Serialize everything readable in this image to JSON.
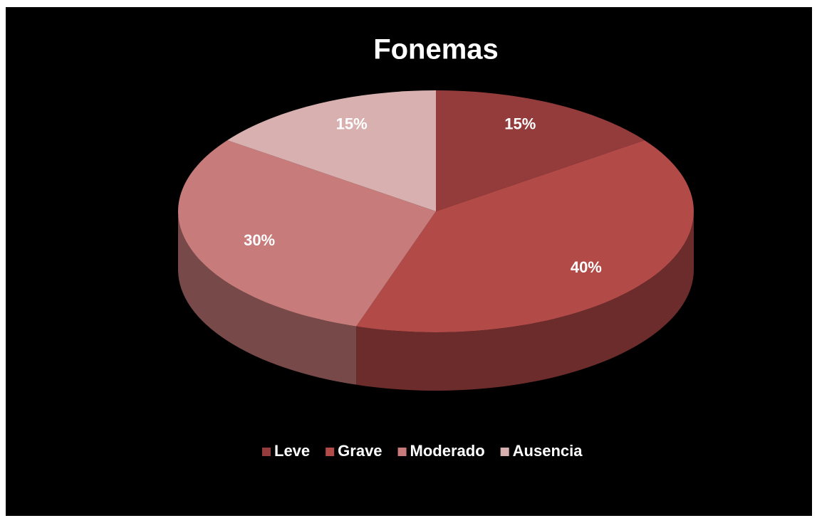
{
  "chart_data": {
    "type": "pie",
    "title": "Fonemas",
    "categories": [
      "Leve",
      "Grave",
      "Moderado",
      "Ausencia"
    ],
    "values": [
      15,
      40,
      30,
      15
    ],
    "value_labels": [
      "15%",
      "40%",
      "30%",
      "15%"
    ],
    "colors": [
      "#943c3c",
      "#b24a48",
      "#c77b7a",
      "#d9b0b0"
    ],
    "legend": "bottom"
  }
}
